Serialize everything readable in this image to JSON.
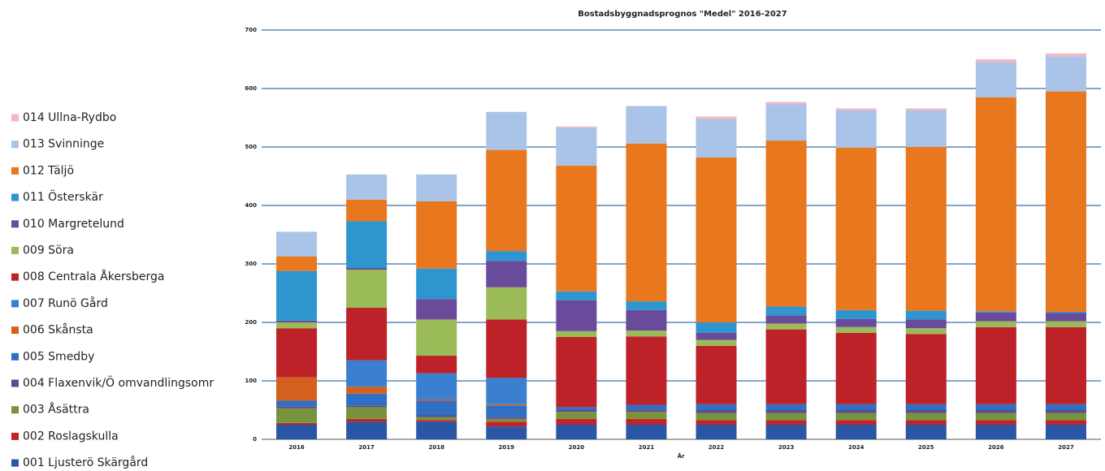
{
  "chart_data": {
    "type": "stacked_bar",
    "title": "Bostadsbyggnadsprognos \"Medel\" 2016-2027",
    "x_label": "År",
    "categories": [
      "2016",
      "2017",
      "2018",
      "2019",
      "2020",
      "2021",
      "2022",
      "2023",
      "2024",
      "2025",
      "2026",
      "2027"
    ],
    "series": [
      {
        "name": "001 Ljusterö Skärgård",
        "color": "#2a56a6",
        "values": [
          25,
          30,
          30,
          22,
          25,
          25,
          25,
          25,
          25,
          25,
          25,
          25
        ]
      },
      {
        "name": "002 Roslagskulla",
        "color": "#c0232a",
        "values": [
          3,
          5,
          3,
          8,
          10,
          10,
          8,
          8,
          8,
          8,
          8,
          8
        ]
      },
      {
        "name": "003 Åsättra",
        "color": "#77933c",
        "values": [
          25,
          20,
          5,
          5,
          12,
          12,
          12,
          12,
          12,
          12,
          12,
          12
        ]
      },
      {
        "name": "004 Flaxenvik/Ö omvandlingsomr",
        "color": "#5f4a8b",
        "values": [
          3,
          3,
          3,
          3,
          3,
          4,
          5,
          5,
          5,
          5,
          5,
          5
        ]
      },
      {
        "name": "005 Smedby",
        "color": "#2f6fc4",
        "values": [
          10,
          20,
          25,
          20,
          5,
          8,
          10,
          10,
          10,
          10,
          10,
          10
        ]
      },
      {
        "name": "006 Skånsta",
        "color": "#d3601f",
        "values": [
          40,
          12,
          2,
          2,
          0,
          0,
          0,
          0,
          0,
          0,
          0,
          0
        ]
      },
      {
        "name": "007 Runö Gård",
        "color": "#3a7fd0",
        "values": [
          0,
          45,
          45,
          45,
          0,
          0,
          0,
          0,
          0,
          0,
          0,
          0
        ]
      },
      {
        "name": "008 Centrala Åkersberga",
        "color": "#bd2229",
        "values": [
          84,
          90,
          30,
          100,
          120,
          117,
          100,
          128,
          122,
          120,
          132,
          132
        ]
      },
      {
        "name": "009 Söra",
        "color": "#9bbb59",
        "values": [
          10,
          65,
          62,
          55,
          10,
          10,
          10,
          10,
          10,
          10,
          10,
          10
        ]
      },
      {
        "name": "010 Margretelund",
        "color": "#6a4a9a",
        "values": [
          3,
          3,
          35,
          45,
          53,
          35,
          12,
          14,
          14,
          15,
          15,
          14
        ]
      },
      {
        "name": "011 Österskär",
        "color": "#2e95cf",
        "values": [
          85,
          80,
          52,
          17,
          15,
          15,
          18,
          15,
          15,
          15,
          2,
          2
        ]
      },
      {
        "name": "012 Täljö",
        "color": "#e8771e",
        "values": [
          25,
          37,
          115,
          173,
          215,
          270,
          282,
          284,
          278,
          280,
          366,
          377
        ]
      },
      {
        "name": "013 Svinninge",
        "color": "#a9c4e8",
        "values": [
          42,
          43,
          46,
          65,
          65,
          64,
          66,
          62,
          64,
          63,
          60,
          60
        ]
      },
      {
        "name": "014 Ullna-Rydbo",
        "color": "#f4b6c2",
        "values": [
          0,
          0,
          0,
          0,
          2,
          0,
          4,
          4,
          3,
          3,
          5,
          5
        ]
      }
    ],
    "ylim": [
      0,
      700
    ],
    "yticks": [
      0,
      100,
      200,
      300,
      400,
      500,
      600,
      700
    ],
    "grid": true
  }
}
